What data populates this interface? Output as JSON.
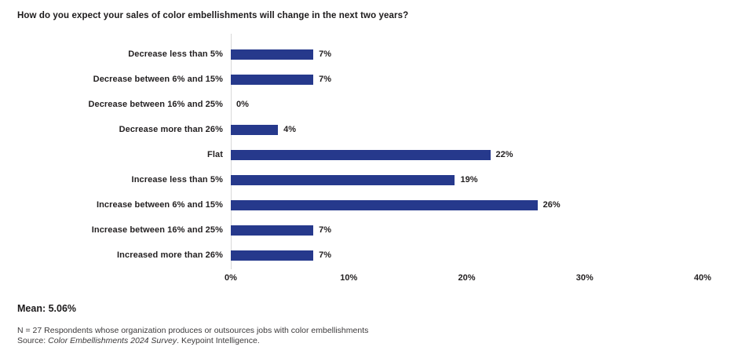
{
  "header": {
    "title": "How do you expect your sales of color embellishments will change in the next two years?"
  },
  "chart_data": {
    "type": "bar",
    "orientation": "horizontal",
    "title": "How do you expect your sales of color embellishments will change in the next two years?",
    "categories": [
      "Decrease less than 5%",
      "Decrease between 6% and 15%",
      "Decrease between 16% and 25%",
      "Decrease more than 26%",
      "Flat",
      "Increase less than 5%",
      "Increase between 6% and 15%",
      "Increase between 16% and 25%",
      "Increased more than 26%"
    ],
    "values": [
      7,
      7,
      0,
      4,
      22,
      19,
      26,
      7,
      7
    ],
    "value_labels": [
      "7%",
      "7%",
      "0%",
      "4%",
      "22%",
      "19%",
      "26%",
      "7%",
      "7%"
    ],
    "xlabel": "",
    "ylabel": "",
    "xlim": [
      0,
      40
    ],
    "x_ticks": [
      "0%",
      "10%",
      "20%",
      "30%",
      "40%"
    ],
    "bar_color": "#26398C",
    "axis_line_color": "#D8D8D8",
    "grid": "off",
    "legend": "none",
    "data_labels": "outside-end"
  },
  "footer": {
    "mean_label": "Mean: 5.06%",
    "note": "N = 27 Respondents whose organization produces or outsources jobs with color embellishments",
    "source_prefix": "Source: ",
    "source_italic": "Color Embellishments 2024 Survey",
    "source_suffix": ". Keypoint Intelligence."
  }
}
